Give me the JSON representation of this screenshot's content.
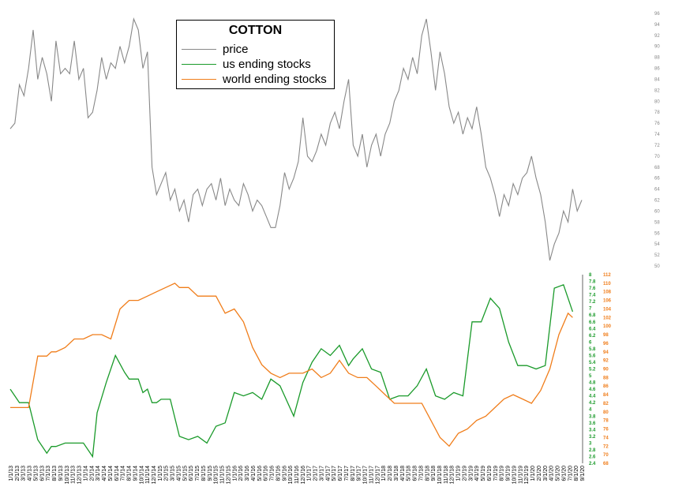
{
  "chart_data": {
    "type": "line",
    "title": "COTTON",
    "legend_position": "top-left",
    "colors": {
      "price": "#888888",
      "us": "#1a9a2a",
      "world": "#f07d1a"
    },
    "series": [
      {
        "name": "price",
        "axis": "y_price"
      },
      {
        "name": "us ending stocks",
        "axis": "y_us"
      },
      {
        "name": "world ending stocks",
        "axis": "y_world"
      }
    ],
    "axes": {
      "y_price": {
        "ticks": [
          "50",
          "52",
          "54",
          "56",
          "58",
          "60",
          "62",
          "64",
          "66",
          "68",
          "70",
          "72",
          "74",
          "76",
          "78",
          "80",
          "82",
          "84",
          "86",
          "88",
          "90",
          "92",
          "94",
          "96"
        ],
        "range": [
          50,
          96
        ]
      },
      "y_us": {
        "ticks": [
          "2.4",
          "2.6",
          "2.8",
          "3",
          "3.2",
          "3.4",
          "3.6",
          "3.8",
          "4",
          "4.2",
          "4.4",
          "4.6",
          "4.8",
          "5",
          "5.2",
          "5.4",
          "5.6",
          "5.8",
          "6",
          "6.2",
          "6.4",
          "6.6",
          "6.8",
          "7",
          "7.2",
          "7.4",
          "7.6",
          "7.8",
          "8"
        ],
        "range": [
          2.4,
          8
        ]
      },
      "y_world": {
        "ticks": [
          "68",
          "70",
          "72",
          "74",
          "76",
          "78",
          "80",
          "82",
          "84",
          "86",
          "88",
          "90",
          "92",
          "94",
          "96",
          "98",
          "100",
          "102",
          "104",
          "106",
          "108",
          "110",
          "112"
        ],
        "range": [
          68,
          112
        ]
      }
    },
    "price_points": [
      [
        0,
        75
      ],
      [
        2,
        76
      ],
      [
        4,
        83
      ],
      [
        6,
        81
      ],
      [
        8,
        86
      ],
      [
        10,
        93
      ],
      [
        12,
        84
      ],
      [
        14,
        88
      ],
      [
        16,
        85
      ],
      [
        18,
        80
      ],
      [
        20,
        91
      ],
      [
        22,
        85
      ],
      [
        24,
        86
      ],
      [
        26,
        85
      ],
      [
        28,
        91
      ],
      [
        30,
        84
      ],
      [
        32,
        86
      ],
      [
        34,
        77
      ],
      [
        36,
        78
      ],
      [
        38,
        82
      ],
      [
        40,
        88
      ],
      [
        42,
        84
      ],
      [
        44,
        87
      ],
      [
        46,
        86
      ],
      [
        48,
        90
      ],
      [
        50,
        87
      ],
      [
        52,
        90
      ],
      [
        54,
        95
      ],
      [
        56,
        93
      ],
      [
        58,
        86
      ],
      [
        60,
        89
      ],
      [
        62,
        68
      ],
      [
        64,
        63
      ],
      [
        66,
        65
      ],
      [
        68,
        67
      ],
      [
        70,
        62
      ],
      [
        72,
        64
      ],
      [
        74,
        60
      ],
      [
        76,
        62
      ],
      [
        78,
        58
      ],
      [
        80,
        63
      ],
      [
        82,
        64
      ],
      [
        84,
        61
      ],
      [
        86,
        64
      ],
      [
        88,
        65
      ],
      [
        90,
        62
      ],
      [
        92,
        66
      ],
      [
        94,
        61
      ],
      [
        96,
        64
      ],
      [
        98,
        62
      ],
      [
        100,
        61
      ],
      [
        102,
        65
      ],
      [
        104,
        63
      ],
      [
        106,
        60
      ],
      [
        108,
        62
      ],
      [
        110,
        61
      ],
      [
        112,
        59
      ],
      [
        114,
        57
      ],
      [
        116,
        57
      ],
      [
        118,
        61
      ],
      [
        120,
        67
      ],
      [
        122,
        64
      ],
      [
        124,
        66
      ],
      [
        126,
        69
      ],
      [
        128,
        77
      ],
      [
        130,
        70
      ],
      [
        132,
        69
      ],
      [
        134,
        71
      ],
      [
        136,
        74
      ],
      [
        138,
        72
      ],
      [
        140,
        76
      ],
      [
        142,
        78
      ],
      [
        144,
        75
      ],
      [
        146,
        80
      ],
      [
        148,
        84
      ],
      [
        150,
        72
      ],
      [
        152,
        70
      ],
      [
        154,
        74
      ],
      [
        156,
        68
      ],
      [
        158,
        72
      ],
      [
        160,
        74
      ],
      [
        162,
        70
      ],
      [
        164,
        74
      ],
      [
        166,
        76
      ],
      [
        168,
        80
      ],
      [
        170,
        82
      ],
      [
        172,
        86
      ],
      [
        174,
        84
      ],
      [
        176,
        88
      ],
      [
        178,
        85
      ],
      [
        180,
        92
      ],
      [
        182,
        95
      ],
      [
        184,
        89
      ],
      [
        186,
        82
      ],
      [
        188,
        89
      ],
      [
        190,
        85
      ],
      [
        192,
        79
      ],
      [
        194,
        76
      ],
      [
        196,
        78
      ],
      [
        198,
        74
      ],
      [
        200,
        77
      ],
      [
        202,
        75
      ],
      [
        204,
        79
      ],
      [
        206,
        74
      ],
      [
        208,
        68
      ],
      [
        210,
        66
      ],
      [
        212,
        63
      ],
      [
        214,
        59
      ],
      [
        216,
        63
      ],
      [
        218,
        61
      ],
      [
        220,
        65
      ],
      [
        222,
        63
      ],
      [
        224,
        66
      ],
      [
        226,
        67
      ],
      [
        228,
        70
      ],
      [
        230,
        66
      ],
      [
        232,
        63
      ],
      [
        234,
        58
      ],
      [
        236,
        51
      ],
      [
        238,
        54
      ],
      [
        240,
        56
      ],
      [
        242,
        60
      ],
      [
        244,
        58
      ],
      [
        246,
        64
      ],
      [
        248,
        60
      ],
      [
        250,
        62
      ]
    ],
    "us_points": [
      [
        0,
        4.6
      ],
      [
        4,
        4.2
      ],
      [
        8,
        4.2
      ],
      [
        12,
        3.1
      ],
      [
        16,
        2.7
      ],
      [
        18,
        2.9
      ],
      [
        20,
        2.9
      ],
      [
        24,
        3.0
      ],
      [
        28,
        3.0
      ],
      [
        32,
        3.0
      ],
      [
        36,
        2.6
      ],
      [
        38,
        3.9
      ],
      [
        42,
        4.8
      ],
      [
        46,
        5.6
      ],
      [
        50,
        5.1
      ],
      [
        52,
        4.9
      ],
      [
        56,
        4.9
      ],
      [
        58,
        4.5
      ],
      [
        60,
        4.6
      ],
      [
        62,
        4.2
      ],
      [
        64,
        4.2
      ],
      [
        66,
        4.3
      ],
      [
        70,
        4.3
      ],
      [
        74,
        3.2
      ],
      [
        78,
        3.1
      ],
      [
        82,
        3.2
      ],
      [
        86,
        3.0
      ],
      [
        90,
        3.5
      ],
      [
        94,
        3.6
      ],
      [
        98,
        4.5
      ],
      [
        102,
        4.4
      ],
      [
        106,
        4.5
      ],
      [
        110,
        4.3
      ],
      [
        114,
        4.9
      ],
      [
        118,
        4.7
      ],
      [
        120,
        4.4
      ],
      [
        124,
        3.8
      ],
      [
        128,
        4.8
      ],
      [
        132,
        5.4
      ],
      [
        136,
        5.8
      ],
      [
        140,
        5.6
      ],
      [
        144,
        5.9
      ],
      [
        148,
        5.3
      ],
      [
        150,
        5.5
      ],
      [
        154,
        5.8
      ],
      [
        158,
        5.2
      ],
      [
        162,
        5.1
      ],
      [
        166,
        4.3
      ],
      [
        170,
        4.4
      ],
      [
        174,
        4.4
      ],
      [
        178,
        4.7
      ],
      [
        182,
        5.2
      ],
      [
        186,
        4.4
      ],
      [
        190,
        4.3
      ],
      [
        194,
        4.5
      ],
      [
        198,
        4.4
      ],
      [
        202,
        6.6
      ],
      [
        206,
        6.6
      ],
      [
        210,
        7.3
      ],
      [
        214,
        7.0
      ],
      [
        218,
        6.0
      ],
      [
        222,
        5.3
      ],
      [
        226,
        5.3
      ],
      [
        230,
        5.2
      ],
      [
        234,
        5.3
      ],
      [
        238,
        7.6
      ],
      [
        242,
        7.7
      ],
      [
        246,
        6.9
      ]
    ],
    "world_points": [
      [
        0,
        81
      ],
      [
        4,
        81
      ],
      [
        8,
        81
      ],
      [
        12,
        93
      ],
      [
        16,
        93
      ],
      [
        18,
        94
      ],
      [
        20,
        94
      ],
      [
        24,
        95
      ],
      [
        28,
        97
      ],
      [
        32,
        97
      ],
      [
        36,
        98
      ],
      [
        40,
        98
      ],
      [
        44,
        97
      ],
      [
        48,
        104
      ],
      [
        52,
        106
      ],
      [
        56,
        106
      ],
      [
        60,
        107
      ],
      [
        64,
        108
      ],
      [
        68,
        109
      ],
      [
        72,
        110
      ],
      [
        74,
        109
      ],
      [
        78,
        109
      ],
      [
        82,
        107
      ],
      [
        86,
        107
      ],
      [
        90,
        107
      ],
      [
        94,
        103
      ],
      [
        98,
        104
      ],
      [
        102,
        101
      ],
      [
        106,
        95
      ],
      [
        110,
        91
      ],
      [
        114,
        89
      ],
      [
        118,
        88
      ],
      [
        122,
        89
      ],
      [
        126,
        89
      ],
      [
        128,
        89
      ],
      [
        132,
        90
      ],
      [
        136,
        88
      ],
      [
        140,
        89
      ],
      [
        144,
        92
      ],
      [
        148,
        89
      ],
      [
        152,
        88
      ],
      [
        156,
        88
      ],
      [
        160,
        86
      ],
      [
        164,
        84
      ],
      [
        168,
        82
      ],
      [
        172,
        82
      ],
      [
        176,
        82
      ],
      [
        180,
        82
      ],
      [
        184,
        78
      ],
      [
        188,
        74
      ],
      [
        192,
        72
      ],
      [
        196,
        75
      ],
      [
        200,
        76
      ],
      [
        204,
        78
      ],
      [
        208,
        79
      ],
      [
        212,
        81
      ],
      [
        216,
        83
      ],
      [
        220,
        84
      ],
      [
        224,
        83
      ],
      [
        228,
        82
      ],
      [
        232,
        85
      ],
      [
        236,
        90
      ],
      [
        240,
        98
      ],
      [
        244,
        103
      ],
      [
        246,
        102
      ]
    ],
    "x_labels": [
      "1/1/13",
      "2/1/13",
      "3/1/13",
      "4/1/13",
      "5/1/13",
      "6/1/13",
      "7/1/13",
      "8/1/13",
      "9/1/13",
      "10/1/13",
      "11/1/13",
      "12/1/13",
      "1/1/14",
      "2/1/14",
      "3/1/14",
      "4/1/14",
      "5/1/14",
      "6/1/14",
      "7/1/14",
      "8/1/14",
      "9/1/14",
      "10/1/14",
      "11/1/14",
      "12/1/14",
      "1/1/15",
      "2/1/15",
      "3/1/15",
      "4/1/15",
      "5/1/15",
      "6/1/15",
      "7/1/15",
      "8/1/15",
      "9/1/15",
      "10/1/15",
      "11/1/15",
      "12/1/15",
      "1/1/16",
      "2/1/16",
      "3/1/16",
      "4/1/16",
      "5/1/16",
      "6/1/16",
      "7/1/16",
      "8/1/16",
      "9/1/16",
      "10/1/16",
      "11/1/16",
      "12/1/16",
      "1/1/17",
      "2/1/17",
      "3/1/17",
      "4/1/17",
      "5/1/17",
      "6/1/17",
      "7/1/17",
      "8/1/17",
      "9/1/17",
      "10/1/17",
      "11/1/17",
      "12/1/17",
      "1/1/18",
      "2/1/18",
      "3/1/18",
      "4/1/18",
      "5/1/18",
      "6/1/18",
      "7/1/18",
      "8/1/18",
      "9/1/18",
      "10/1/18",
      "11/1/18",
      "12/1/18",
      "1/1/19",
      "2/1/19",
      "3/1/19",
      "4/1/19",
      "5/1/19",
      "6/1/19",
      "7/1/19",
      "8/1/19",
      "9/1/19",
      "10/1/19",
      "11/1/19",
      "12/1/19",
      "1/1/20",
      "2/1/20",
      "3/1/20",
      "4/1/20",
      "5/1/20",
      "6/1/20",
      "7/1/20",
      "8/1/20",
      "9/1/20"
    ],
    "legend": {
      "title": "COTTON",
      "items": [
        "price",
        "us ending stocks",
        "world ending stocks"
      ]
    }
  }
}
